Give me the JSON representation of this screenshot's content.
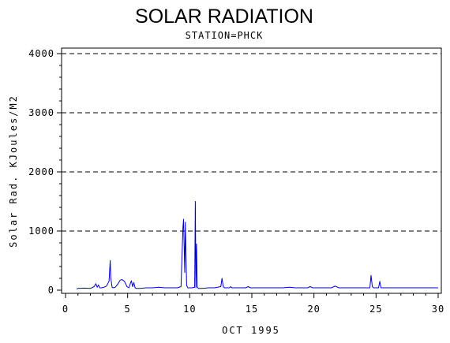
{
  "chart_data": {
    "type": "line",
    "title": "SOLAR RADIATION",
    "subtitle": "STATION=PHCK",
    "xlabel": "OCT 1995",
    "ylabel": "Solar Rad. KJoules/M2",
    "xlim": [
      0,
      30
    ],
    "ylim": [
      0,
      4000
    ],
    "x_ticks": [
      0,
      5,
      10,
      15,
      20,
      25,
      30
    ],
    "y_ticks": [
      0,
      1000,
      2000,
      3000,
      4000
    ],
    "grid": "horizontal dashed",
    "line_color": "#0000cc",
    "series": [
      {
        "x": [
          0.9,
          1.0,
          1.5,
          2.0,
          2.3,
          2.45,
          2.55,
          2.65,
          2.75,
          2.9,
          3.1,
          3.3,
          3.5,
          3.6,
          3.65,
          3.75,
          3.85,
          4.0,
          4.2,
          4.4,
          4.55,
          4.75,
          4.95,
          5.1,
          5.2,
          5.3,
          5.4,
          5.5,
          5.6,
          5.7,
          6.0,
          6.5,
          7.0,
          7.5,
          8.0,
          8.5,
          9.0,
          9.3,
          9.45,
          9.5,
          9.6,
          9.65,
          9.75,
          9.85,
          10.0,
          10.2,
          10.4,
          10.45,
          10.5,
          10.55,
          10.6,
          10.7,
          11.0,
          11.5,
          12.0,
          12.5,
          12.6,
          12.7,
          12.8,
          13.0,
          13.2,
          13.3,
          13.4,
          13.6,
          14.0,
          14.5,
          14.7,
          14.9,
          15.2,
          15.5,
          16.0,
          16.5,
          17.0,
          17.5,
          18.0,
          18.5,
          19.0,
          19.5,
          19.7,
          19.9,
          20.2,
          20.5,
          21.0,
          21.4,
          21.7,
          22.0,
          22.5,
          23.0,
          23.5,
          24.0,
          24.5,
          24.6,
          24.7,
          24.8,
          25.0,
          25.2,
          25.3,
          25.4,
          25.6,
          26.0,
          26.5,
          27.0,
          27.5,
          28.0,
          28.5,
          29.0,
          29.5,
          30.0
        ],
        "y": [
          20,
          30,
          35,
          30,
          60,
          110,
          50,
          90,
          40,
          40,
          50,
          70,
          150,
          500,
          200,
          50,
          40,
          50,
          100,
          170,
          180,
          150,
          60,
          40,
          100,
          160,
          60,
          130,
          40,
          30,
          30,
          40,
          40,
          50,
          40,
          40,
          40,
          60,
          1050,
          1200,
          300,
          1150,
          80,
          40,
          40,
          40,
          50,
          1500,
          40,
          780,
          60,
          30,
          30,
          40,
          40,
          60,
          200,
          60,
          40,
          40,
          40,
          60,
          40,
          40,
          40,
          40,
          60,
          40,
          40,
          40,
          40,
          40,
          40,
          40,
          50,
          40,
          40,
          40,
          60,
          40,
          40,
          40,
          40,
          40,
          70,
          40,
          40,
          40,
          40,
          40,
          40,
          250,
          60,
          40,
          40,
          40,
          150,
          40,
          40,
          40,
          40,
          40,
          40,
          40,
          40,
          40,
          40,
          40
        ]
      }
    ]
  }
}
